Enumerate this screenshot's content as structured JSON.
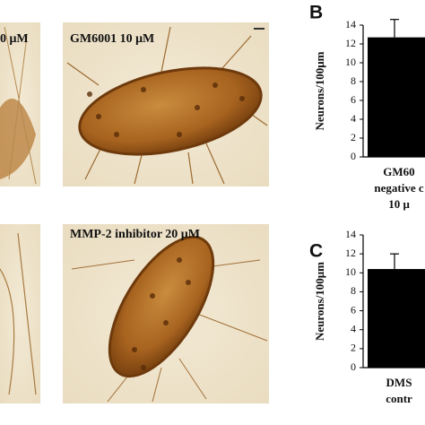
{
  "panels": [
    {
      "label": "0 μM"
    },
    {
      "label": "GM6001 10 μM"
    },
    {
      "label": "MMP-2 inhibitor 20 μM"
    }
  ],
  "chart_data": [
    {
      "type": "bar",
      "panel_letter": "B",
      "ylabel": "Neurons/100μm",
      "categories": [
        [
          "GM60",
          "negative c",
          "10 μ"
        ]
      ],
      "values": [
        12.7
      ],
      "errors": [
        1.9
      ],
      "color": "#000000",
      "ylim": [
        0,
        14
      ],
      "yticks": [
        0,
        2,
        4,
        6,
        8,
        10,
        12,
        14
      ]
    },
    {
      "type": "bar",
      "panel_letter": "C",
      "ylabel": "Neurons/100μm",
      "categories": [
        [
          "DMS",
          "contr"
        ]
      ],
      "values": [
        10.4
      ],
      "errors": [
        1.6
      ],
      "color": "#000000",
      "ylim": [
        0,
        14
      ],
      "yticks": [
        0,
        2,
        4,
        6,
        8,
        10,
        12,
        14
      ]
    }
  ]
}
